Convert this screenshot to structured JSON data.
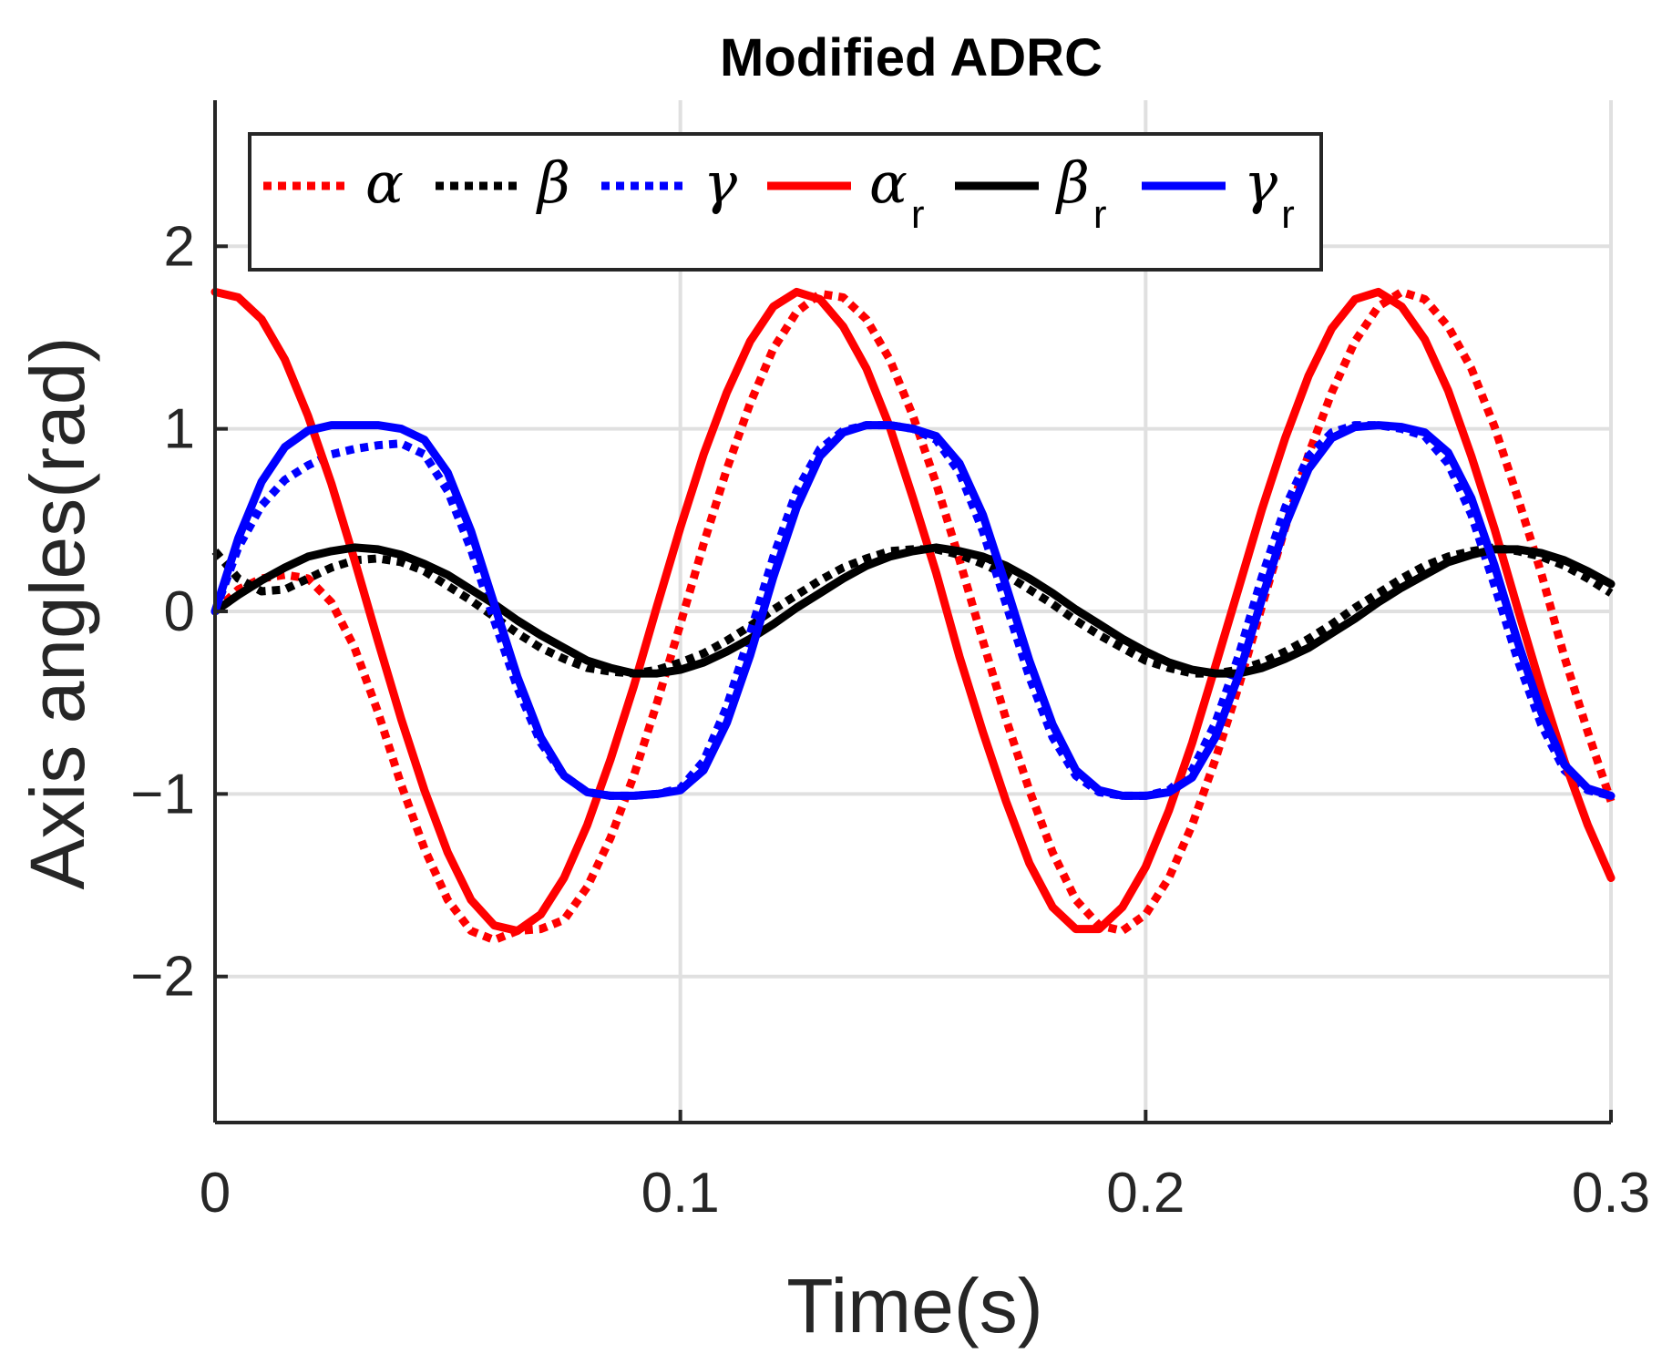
{
  "chart_data": {
    "type": "line",
    "title": "Modified ADRC",
    "xlabel": "Time(s)",
    "ylabel": "Axis angles(rad)",
    "xlim": [
      0,
      0.3
    ],
    "ylim": [
      -2.8,
      2.8
    ],
    "xticks": [
      0,
      0.1,
      0.2,
      0.3
    ],
    "xtick_labels": [
      "0",
      "0.1",
      "0.2",
      "0.3"
    ],
    "yticks": [
      -2,
      -1,
      0,
      1,
      2
    ],
    "ytick_labels": [
      "−2",
      "−1",
      "0",
      "1",
      "2"
    ],
    "grid": true,
    "legend_position": "top",
    "legend_orientation": "horizontal",
    "x": [
      0,
      0.005,
      0.01,
      0.015,
      0.02,
      0.025,
      0.03,
      0.035,
      0.04,
      0.045,
      0.05,
      0.055,
      0.06,
      0.065,
      0.07,
      0.075,
      0.08,
      0.085,
      0.09,
      0.095,
      0.1,
      0.105,
      0.11,
      0.115,
      0.12,
      0.125,
      0.13,
      0.135,
      0.14,
      0.145,
      0.15,
      0.155,
      0.16,
      0.165,
      0.17,
      0.175,
      0.18,
      0.185,
      0.19,
      0.195,
      0.2,
      0.205,
      0.21,
      0.215,
      0.22,
      0.225,
      0.23,
      0.235,
      0.24,
      0.245,
      0.25,
      0.255,
      0.26,
      0.265,
      0.27,
      0.275,
      0.28,
      0.285,
      0.29,
      0.295,
      0.3
    ],
    "series": [
      {
        "name": "α",
        "label": "α",
        "subscript": "",
        "color": "#ff0000",
        "style": "dotted",
        "values": [
          0,
          0.12,
          0.18,
          0.2,
          0.18,
          0.05,
          -0.2,
          -0.55,
          -0.95,
          -1.3,
          -1.58,
          -1.75,
          -1.8,
          -1.75,
          -1.74,
          -1.69,
          -1.51,
          -1.24,
          -0.9,
          -0.5,
          -0.07,
          0.37,
          0.78,
          1.14,
          1.44,
          1.64,
          1.74,
          1.72,
          1.6,
          1.38,
          1.07,
          0.7,
          0.28,
          -0.16,
          -0.59,
          -0.98,
          -1.32,
          -1.58,
          -1.72,
          -1.75,
          -1.66,
          -1.46,
          -1.17,
          -0.81,
          -0.41,
          0.03,
          0.46,
          0.86,
          1.2,
          1.48,
          1.67,
          1.75,
          1.71,
          1.56,
          1.33,
          1.01,
          0.62,
          0.21,
          -0.25,
          -0.66,
          -1.04
        ]
      },
      {
        "name": "β",
        "label": "β",
        "subscript": "",
        "color": "#000000",
        "style": "dotted",
        "values": [
          0.33,
          0.18,
          0.11,
          0.12,
          0.18,
          0.24,
          0.28,
          0.29,
          0.27,
          0.22,
          0.14,
          0.06,
          -0.03,
          -0.12,
          -0.2,
          -0.26,
          -0.31,
          -0.33,
          -0.34,
          -0.32,
          -0.28,
          -0.23,
          -0.16,
          -0.08,
          0.01,
          0.09,
          0.17,
          0.24,
          0.29,
          0.33,
          0.34,
          0.34,
          0.31,
          0.26,
          0.2,
          0.12,
          0.04,
          -0.05,
          -0.13,
          -0.2,
          -0.27,
          -0.31,
          -0.34,
          -0.34,
          -0.32,
          -0.28,
          -0.22,
          -0.15,
          -0.07,
          0.02,
          0.1,
          0.18,
          0.25,
          0.3,
          0.33,
          0.35,
          0.33,
          0.3,
          0.25,
          0.18,
          0.1
        ]
      },
      {
        "name": "γ",
        "label": "γ",
        "subscript": "",
        "color": "#0000ff",
        "style": "dotted",
        "values": [
          0.0,
          0.35,
          0.58,
          0.72,
          0.8,
          0.86,
          0.89,
          0.91,
          0.92,
          0.86,
          0.66,
          0.34,
          -0.05,
          -0.42,
          -0.72,
          -0.9,
          -0.99,
          -1.01,
          -1.01,
          -1.0,
          -0.97,
          -0.82,
          -0.52,
          -0.12,
          0.3,
          0.66,
          0.89,
          0.99,
          1.02,
          1.02,
          1.0,
          0.94,
          0.76,
          0.44,
          0.04,
          -0.36,
          -0.69,
          -0.9,
          -0.99,
          -1.01,
          -1.01,
          -0.98,
          -0.87,
          -0.61,
          -0.24,
          0.19,
          0.57,
          0.85,
          0.98,
          1.02,
          1.02,
          1.0,
          0.96,
          0.81,
          0.53,
          0.14,
          -0.27,
          -0.62,
          -0.87,
          -0.98,
          -1.01
        ]
      },
      {
        "name": "α_r",
        "label": "α",
        "subscript": "r",
        "color": "#ff0000",
        "style": "solid",
        "values": [
          1.75,
          1.72,
          1.6,
          1.38,
          1.07,
          0.7,
          0.28,
          -0.16,
          -0.59,
          -0.98,
          -1.32,
          -1.58,
          -1.72,
          -1.75,
          -1.66,
          -1.46,
          -1.17,
          -0.81,
          -0.41,
          0.03,
          0.46,
          0.86,
          1.2,
          1.48,
          1.67,
          1.75,
          1.71,
          1.56,
          1.33,
          1.01,
          0.62,
          0.21,
          -0.25,
          -0.66,
          -1.04,
          -1.38,
          -1.62,
          -1.74,
          -1.74,
          -1.62,
          -1.4,
          -1.09,
          -0.72,
          -0.3,
          0.13,
          0.56,
          0.95,
          1.29,
          1.55,
          1.71,
          1.75,
          1.67,
          1.49,
          1.21,
          0.85,
          0.45,
          0.01,
          -0.42,
          -0.82,
          -1.17,
          -1.46
        ]
      },
      {
        "name": "β_r",
        "label": "β",
        "subscript": "r",
        "color": "#000000",
        "style": "solid",
        "values": [
          0,
          0.09,
          0.17,
          0.24,
          0.3,
          0.33,
          0.35,
          0.34,
          0.31,
          0.26,
          0.2,
          0.12,
          0.04,
          -0.05,
          -0.13,
          -0.2,
          -0.27,
          -0.31,
          -0.34,
          -0.34,
          -0.32,
          -0.28,
          -0.22,
          -0.15,
          -0.07,
          0.02,
          0.1,
          0.18,
          0.25,
          0.3,
          0.33,
          0.35,
          0.33,
          0.3,
          0.25,
          0.18,
          0.1,
          0.01,
          -0.07,
          -0.15,
          -0.22,
          -0.28,
          -0.32,
          -0.34,
          -0.34,
          -0.31,
          -0.26,
          -0.2,
          -0.12,
          -0.04,
          0.05,
          0.13,
          0.2,
          0.27,
          0.31,
          0.34,
          0.34,
          0.32,
          0.28,
          0.22,
          0.15
        ]
      },
      {
        "name": "γ_r",
        "label": "γ",
        "subscript": "r",
        "color": "#0000ff",
        "style": "solid",
        "values": [
          0,
          0.4,
          0.71,
          0.9,
          0.99,
          1.02,
          1.02,
          1.02,
          1.0,
          0.94,
          0.76,
          0.44,
          0.04,
          -0.36,
          -0.69,
          -0.9,
          -0.99,
          -1.01,
          -1.01,
          -1.0,
          -0.98,
          -0.87,
          -0.61,
          -0.24,
          0.19,
          0.57,
          0.85,
          0.98,
          1.02,
          1.02,
          1.0,
          0.96,
          0.81,
          0.53,
          0.14,
          -0.27,
          -0.62,
          -0.87,
          -0.98,
          -1.01,
          -1.01,
          -0.99,
          -0.91,
          -0.69,
          -0.35,
          0.07,
          0.47,
          0.78,
          0.95,
          1.01,
          1.02,
          1.01,
          0.98,
          0.87,
          0.62,
          0.25,
          -0.17,
          -0.55,
          -0.84,
          -0.97,
          -1.01
        ]
      }
    ]
  }
}
